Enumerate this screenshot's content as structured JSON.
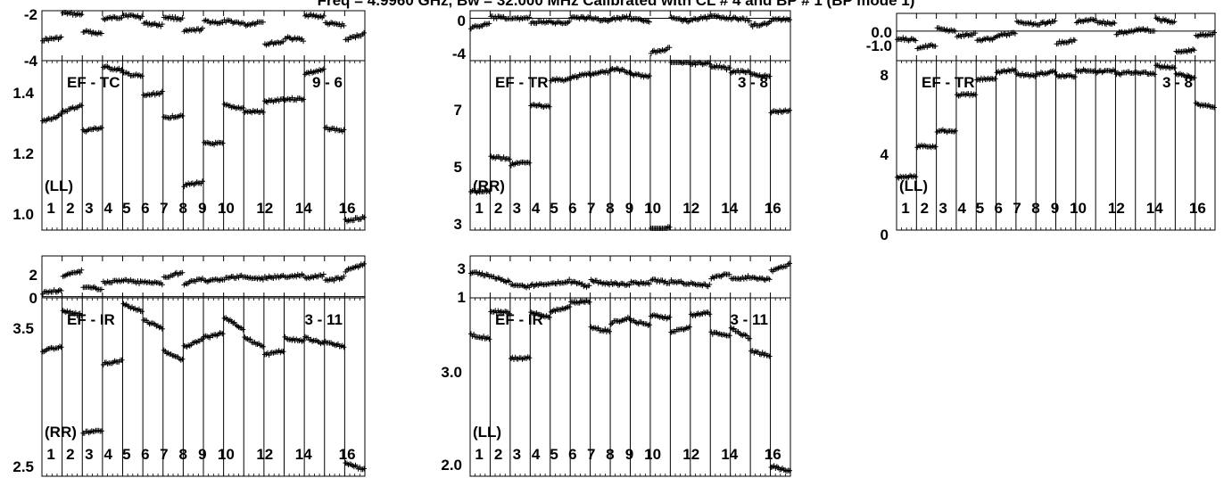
{
  "title": "Freq = 4.9960 GHz, Bw = 32.000 MHz   Calibrated with CL # 4 and BP # 1 (BP mode 1)",
  "channel_labels": [
    "1",
    "2",
    "3",
    "4",
    "5",
    "6",
    "7",
    "8",
    "9",
    "10",
    "12",
    "14",
    "16"
  ],
  "chart_data": [
    {
      "type": "scatter",
      "panel": "EF - TC 9 - 6",
      "baseline_label": "EF - TC",
      "baseline_code": "9 - 6",
      "polarization": "(LL)",
      "residual": {
        "yticks": [
          "-2",
          "-4"
        ],
        "ylim": [
          -4.2,
          -1.8
        ],
        "zero_line": false,
        "segments": [
          [
            -3.2,
            -3.1
          ],
          [
            -1.9,
            -2.0
          ],
          [
            -2.8,
            -2.9
          ],
          [
            -2.2,
            -2.1
          ],
          [
            -2.0,
            -2.1
          ],
          [
            -2.4,
            -2.5
          ],
          [
            -2.1,
            -2.2
          ],
          [
            -2.8,
            -2.7
          ],
          [
            -2.3,
            -2.4
          ],
          [
            -2.3,
            -2.4
          ],
          [
            -2.5,
            -2.3
          ],
          [
            -3.4,
            -3.3
          ],
          [
            -3.1,
            -3.2
          ],
          [
            -2.0,
            -2.1
          ],
          [
            -2.4,
            -2.5
          ],
          [
            -3.2,
            -2.9
          ]
        ]
      },
      "amplitude": {
        "yticks": [
          "1.4",
          "1.2",
          "1.0"
        ],
        "ylim": [
          0.95,
          1.48
        ],
        "segments": [
          [
            1.29,
            1.31
          ],
          [
            1.32,
            1.34
          ],
          [
            1.26,
            1.27
          ],
          [
            1.46,
            1.45
          ],
          [
            1.44,
            1.43
          ],
          [
            1.37,
            1.38
          ],
          [
            1.3,
            1.31
          ],
          [
            1.09,
            1.1
          ],
          [
            1.22,
            1.22
          ],
          [
            1.34,
            1.33
          ],
          [
            1.32,
            1.32
          ],
          [
            1.35,
            1.36
          ],
          [
            1.36,
            1.36
          ],
          [
            1.44,
            1.45
          ],
          [
            1.27,
            1.26
          ],
          [
            0.98,
            0.99
          ]
        ]
      }
    },
    {
      "type": "scatter",
      "panel": "EF - TR 3 - 8 (RR)",
      "baseline_label": "EF - TR",
      "baseline_code": "3 - 8",
      "polarization": "(RR)",
      "residual": {
        "yticks": [
          "0",
          "-4"
        ],
        "ylim": [
          -4.5,
          0.8
        ],
        "zero_line": true,
        "segments": [
          [
            -1.0,
            -0.6
          ],
          [
            0.1,
            0.0
          ],
          [
            -0.1,
            0.1
          ],
          [
            -0.5,
            -0.4
          ],
          [
            -0.5,
            -0.4
          ],
          [
            0.1,
            0.0
          ],
          [
            0.0,
            -0.3
          ],
          [
            -0.1,
            0.1
          ],
          [
            -0.1,
            -0.3
          ],
          [
            -3.6,
            -3.2
          ],
          [
            0.0,
            -0.3
          ],
          [
            -0.1,
            0.1
          ],
          [
            0.2,
            0.0
          ],
          [
            0.0,
            -0.2
          ],
          [
            -0.8,
            -0.5
          ],
          [
            -0.2,
            -0.1
          ]
        ]
      },
      "amplitude": {
        "yticks": [
          "7",
          "5",
          "3"
        ],
        "ylim": [
          2.7,
          8.9
        ],
        "segments": [
          [
            4.1,
            4.1
          ],
          [
            5.4,
            5.3
          ],
          [
            5.1,
            5.2
          ],
          [
            7.3,
            7.2
          ],
          [
            8.2,
            8.2
          ],
          [
            8.3,
            8.4
          ],
          [
            8.4,
            8.5
          ],
          [
            8.6,
            8.5
          ],
          [
            8.4,
            8.3
          ],
          [
            2.7,
            2.8
          ],
          [
            8.9,
            8.8
          ],
          [
            8.8,
            8.8
          ],
          [
            8.7,
            8.6
          ],
          [
            8.5,
            8.5
          ],
          [
            8.4,
            8.3
          ],
          [
            7.0,
            7.1
          ]
        ]
      }
    },
    {
      "type": "scatter",
      "panel": "EF - TR 3 - 8 (LL)",
      "baseline_label": "EF - TR",
      "baseline_code": "3 - 8",
      "polarization": "(LL)",
      "residual": {
        "yticks": [
          "0.0",
          "-1.0"
        ],
        "ylim": [
          -1.25,
          0.75
        ],
        "zero_line": true,
        "segments": [
          [
            -0.3,
            -0.4
          ],
          [
            -0.7,
            -0.6
          ],
          [
            0.1,
            0.0
          ],
          [
            -0.2,
            -0.1
          ],
          [
            -0.4,
            -0.3
          ],
          [
            -0.2,
            -0.1
          ],
          [
            0.4,
            0.3
          ],
          [
            0.3,
            0.4
          ],
          [
            -0.5,
            -0.4
          ],
          [
            0.4,
            0.5
          ],
          [
            0.4,
            0.3
          ],
          [
            -0.1,
            0.0
          ],
          [
            0.1,
            0.0
          ],
          [
            0.5,
            0.4
          ],
          [
            -0.9,
            -0.8
          ],
          [
            -0.2,
            -0.1
          ]
        ]
      },
      "amplitude": {
        "yticks": [
          "8",
          "4",
          "0"
        ],
        "ylim": [
          -0.3,
          8.6
        ],
        "segments": [
          [
            2.5,
            2.5
          ],
          [
            4.1,
            4.1
          ],
          [
            4.9,
            4.9
          ],
          [
            6.8,
            6.8
          ],
          [
            7.6,
            7.7
          ],
          [
            8.0,
            8.1
          ],
          [
            7.9,
            7.8
          ],
          [
            7.9,
            8.0
          ],
          [
            7.8,
            7.8
          ],
          [
            8.1,
            8.1
          ],
          [
            8.0,
            8.1
          ],
          [
            7.9,
            8.0
          ],
          [
            8.0,
            7.9
          ],
          [
            8.3,
            8.2
          ],
          [
            7.9,
            7.7
          ],
          [
            6.3,
            6.2
          ]
        ]
      }
    },
    {
      "type": "scatter",
      "panel": "EF - IR 3 - 11 (RR)",
      "baseline_label": "EF - IR",
      "baseline_code": "3 - 11",
      "polarization": "(RR)",
      "residual": {
        "yticks": [
          "2",
          "0"
        ],
        "ylim": [
          -0.1,
          3.2
        ],
        "zero_line": true,
        "segments": [
          [
            0.3,
            0.5
          ],
          [
            1.6,
            2.0
          ],
          [
            0.8,
            0.6
          ],
          [
            1.1,
            1.3
          ],
          [
            1.3,
            1.1
          ],
          [
            1.2,
            1.0
          ],
          [
            1.5,
            1.9
          ],
          [
            1.0,
            1.4
          ],
          [
            1.2,
            1.4
          ],
          [
            1.4,
            1.6
          ],
          [
            1.5,
            1.4
          ],
          [
            1.5,
            1.6
          ],
          [
            1.5,
            1.7
          ],
          [
            1.4,
            1.7
          ],
          [
            1.2,
            1.5
          ],
          [
            2.0,
            2.6
          ]
        ]
      },
      "amplitude": {
        "yticks": [
          "3.5",
          "2.5"
        ],
        "ylim": [
          2.3,
          3.65
        ],
        "segments": [
          [
            3.25,
            3.28
          ],
          [
            3.55,
            3.52
          ],
          [
            2.63,
            2.65
          ],
          [
            3.15,
            3.18
          ],
          [
            3.6,
            3.55
          ],
          [
            3.48,
            3.42
          ],
          [
            3.25,
            3.18
          ],
          [
            3.28,
            3.33
          ],
          [
            3.35,
            3.38
          ],
          [
            3.5,
            3.42
          ],
          [
            3.35,
            3.28
          ],
          [
            3.22,
            3.25
          ],
          [
            3.35,
            3.32
          ],
          [
            3.35,
            3.3
          ],
          [
            3.32,
            3.28
          ],
          [
            2.4,
            2.35
          ]
        ]
      }
    },
    {
      "type": "scatter",
      "panel": "EF - IR 3 - 11 (LL)",
      "baseline_label": "EF - IR",
      "baseline_code": "3 - 11",
      "polarization": "(LL)",
      "residual": {
        "yticks": [
          "3",
          "1"
        ],
        "ylim": [
          0.1,
          3.5
        ],
        "zero_line": false,
        "segments": [
          [
            2.2,
            1.9
          ],
          [
            1.8,
            1.4
          ],
          [
            1.2,
            1.0
          ],
          [
            1.1,
            1.3
          ],
          [
            1.2,
            1.5
          ],
          [
            1.4,
            1.0
          ],
          [
            1.5,
            1.2
          ],
          [
            1.3,
            1.1
          ],
          [
            1.4,
            1.2
          ],
          [
            1.6,
            1.3
          ],
          [
            1.5,
            1.2
          ],
          [
            1.3,
            1.1
          ],
          [
            1.7,
            2.1
          ],
          [
            1.6,
            1.8
          ],
          [
            1.8,
            1.6
          ],
          [
            2.3,
            2.8
          ]
        ]
      },
      "amplitude": {
        "yticks": [
          "3.0",
          "2.0"
        ],
        "ylim": [
          1.88,
          3.65
        ],
        "segments": [
          [
            3.28,
            3.25
          ],
          [
            3.52,
            3.5
          ],
          [
            3.05,
            3.05
          ],
          [
            3.5,
            3.46
          ],
          [
            3.52,
            3.56
          ],
          [
            3.6,
            3.62
          ],
          [
            3.35,
            3.32
          ],
          [
            3.4,
            3.45
          ],
          [
            3.42,
            3.38
          ],
          [
            3.48,
            3.45
          ],
          [
            3.32,
            3.35
          ],
          [
            3.48,
            3.5
          ],
          [
            3.3,
            3.28
          ],
          [
            3.35,
            3.25
          ],
          [
            3.12,
            3.08
          ],
          [
            1.98,
            1.93
          ]
        ]
      }
    }
  ]
}
